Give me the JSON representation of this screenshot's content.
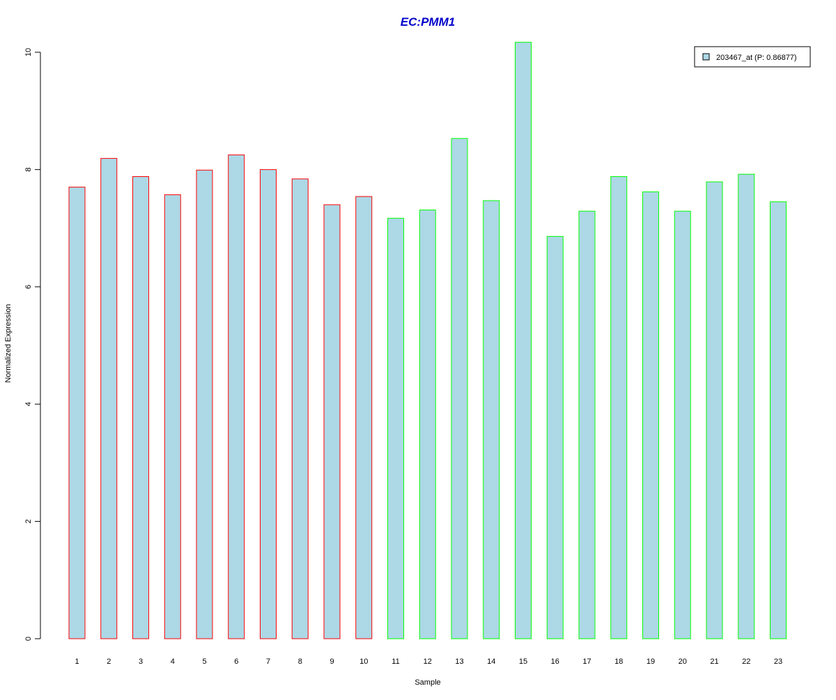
{
  "chart_data": {
    "type": "bar",
    "title": "EC:PMM1",
    "title_color": "#0000CC",
    "xlabel": "Sample",
    "ylabel": "Normalized Expression",
    "ylim": [
      0,
      10
    ],
    "yticks": [
      "0",
      "2",
      "4",
      "6",
      "8",
      "10"
    ],
    "grid": false,
    "legend_position": "top-right",
    "categories": [
      "1",
      "2",
      "3",
      "4",
      "5",
      "6",
      "7",
      "8",
      "9",
      "10",
      "11",
      "12",
      "13",
      "14",
      "15",
      "16",
      "17",
      "18",
      "19",
      "20",
      "21",
      "22",
      "23"
    ],
    "series": [
      {
        "name": "203467_at (P: 0.86877)",
        "fill_color": "#ADD8E6",
        "values": [
          7.7,
          8.19,
          7.88,
          7.57,
          7.99,
          8.25,
          8.0,
          7.84,
          7.4,
          7.54,
          7.17,
          7.31,
          8.53,
          7.47,
          10.17,
          6.86,
          7.29,
          7.88,
          7.62,
          7.29,
          7.79,
          7.92,
          7.45
        ]
      }
    ],
    "group_border_colors": [
      "#FF0000",
      "#FF0000",
      "#FF0000",
      "#FF0000",
      "#FF0000",
      "#FF0000",
      "#FF0000",
      "#FF0000",
      "#FF0000",
      "#FF0000",
      "#00FF00",
      "#00FF00",
      "#00FF00",
      "#00FF00",
      "#00FF00",
      "#00FF00",
      "#00FF00",
      "#00FF00",
      "#00FF00",
      "#00FF00",
      "#00FF00",
      "#00FF00",
      "#00FF00"
    ]
  }
}
